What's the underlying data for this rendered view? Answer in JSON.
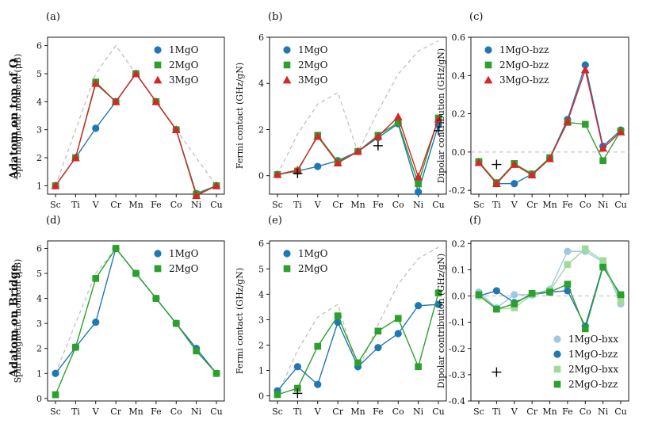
{
  "figure": {
    "row_labels": [
      "Adatom on top of O",
      "Adatom on Bridge"
    ]
  },
  "chart_data": [
    {
      "panel": "(a)",
      "type": "line",
      "ylabel": "Spin magnetic moment (μB)",
      "categories": [
        "Sc",
        "Ti",
        "V",
        "Cr",
        "Mn",
        "Fe",
        "Co",
        "Ni",
        "Cu"
      ],
      "ylim": [
        0.7,
        6.3
      ],
      "yticks": [
        1,
        2,
        3,
        4,
        5,
        6
      ],
      "dashed": [
        1,
        3,
        5,
        6,
        5,
        4,
        3,
        2,
        1
      ],
      "series": [
        {
          "name": "1MgO",
          "values": [
            1,
            2,
            3.05,
            4,
            5,
            4,
            3,
            0.72,
            1
          ],
          "color": "#1f77b4",
          "marker": "circle"
        },
        {
          "name": "2MgO",
          "values": [
            1,
            2,
            4.7,
            4,
            5,
            4,
            3,
            0.7,
            1
          ],
          "color": "#2ca02c",
          "marker": "square"
        },
        {
          "name": "3MgO",
          "values": [
            1,
            2,
            4.65,
            4,
            5,
            4,
            3,
            0.65,
            1
          ],
          "color": "#d62728",
          "marker": "triangle"
        }
      ],
      "legend_loc": "upper-right"
    },
    {
      "panel": "(b)",
      "type": "line",
      "ylabel": "Fermi contact (GHz/gN)",
      "categories": [
        "Sc",
        "Ti",
        "V",
        "Cr",
        "Mn",
        "Fe",
        "Co",
        "Ni",
        "Cu"
      ],
      "ylim": [
        -0.8,
        6.0
      ],
      "yticks": [
        0,
        2,
        4,
        6
      ],
      "dashed": [
        0.05,
        1.8,
        3.1,
        3.6,
        1.0,
        2.8,
        4.4,
        5.4,
        5.85
      ],
      "series": [
        {
          "name": "1MgO",
          "values": [
            0.05,
            0.2,
            0.4,
            0.65,
            1.05,
            1.65,
            2.25,
            -0.7,
            2.2
          ],
          "color": "#1f77b4",
          "marker": "circle"
        },
        {
          "name": "2MgO",
          "values": [
            0.05,
            0.2,
            1.75,
            0.6,
            1.05,
            1.75,
            2.3,
            -0.35,
            2.5
          ],
          "color": "#2ca02c",
          "marker": "square"
        },
        {
          "name": "3MgO",
          "values": [
            0.05,
            0.25,
            1.7,
            0.55,
            1.05,
            1.7,
            2.55,
            -0.05,
            2.45
          ],
          "color": "#d62728",
          "marker": "triangle"
        }
      ],
      "crosses": [
        [
          1,
          0.1
        ],
        [
          5,
          1.3
        ],
        [
          8,
          1.95
        ]
      ],
      "legend_loc": "upper-left"
    },
    {
      "panel": "(c)",
      "type": "line",
      "ylabel": "Dipolar contribution (GHz/gN)",
      "categories": [
        "Sc",
        "Ti",
        "V",
        "Cr",
        "Mn",
        "Fe",
        "Co",
        "Ni",
        "Cu"
      ],
      "ylim": [
        -0.22,
        0.6
      ],
      "yticks": [
        -0.2,
        0.0,
        0.2,
        0.4,
        0.6
      ],
      "zero_line": true,
      "series": [
        {
          "name": "1MgO-bzz",
          "values": [
            -0.05,
            -0.165,
            -0.165,
            -0.115,
            -0.03,
            0.17,
            0.455,
            0.03,
            0.115
          ],
          "color": "#1f77b4",
          "marker": "circle"
        },
        {
          "name": "2MgO-bzz",
          "values": [
            -0.05,
            -0.16,
            -0.06,
            -0.115,
            -0.03,
            0.155,
            0.145,
            -0.045,
            0.11
          ],
          "color": "#2ca02c",
          "marker": "square"
        },
        {
          "name": "3MgO-bzz",
          "values": [
            -0.055,
            -0.165,
            -0.065,
            -0.12,
            -0.035,
            0.16,
            0.43,
            0.02,
            0.105
          ],
          "color": "#d62728",
          "marker": "triangle"
        }
      ],
      "crosses": [
        [
          1,
          -0.065
        ]
      ],
      "legend_loc": "upper-left"
    },
    {
      "panel": "(d)",
      "type": "line",
      "ylabel": "Spin magnetic moment (μB)",
      "categories": [
        "Sc",
        "Ti",
        "V",
        "Cr",
        "Mn",
        "Fe",
        "Co",
        "Ni",
        "Cu"
      ],
      "ylim": [
        -0.1,
        6.3
      ],
      "yticks": [
        0,
        1,
        2,
        3,
        4,
        5,
        6
      ],
      "dashed": [
        1,
        3,
        5,
        6,
        5,
        4,
        3,
        2,
        1
      ],
      "series": [
        {
          "name": "1MgO",
          "values": [
            1,
            2.05,
            3.05,
            6,
            5,
            4,
            3,
            2,
            1
          ],
          "color": "#1f77b4",
          "marker": "circle"
        },
        {
          "name": "2MgO",
          "values": [
            0.15,
            2.05,
            4.8,
            6,
            5,
            4,
            3,
            1.9,
            1
          ],
          "color": "#2ca02c",
          "marker": "square"
        }
      ],
      "legend_loc": "upper-right"
    },
    {
      "panel": "(e)",
      "type": "line",
      "ylabel": "Fermi contact (GHz/gN)",
      "categories": [
        "Sc",
        "Ti",
        "V",
        "Cr",
        "Mn",
        "Fe",
        "Co",
        "Ni",
        "Cu"
      ],
      "ylim": [
        -0.2,
        6.1
      ],
      "yticks": [
        0,
        1,
        2,
        3,
        4,
        5,
        6
      ],
      "dashed": [
        0.05,
        1.8,
        3.1,
        3.6,
        1.0,
        2.8,
        4.4,
        5.4,
        5.85
      ],
      "series": [
        {
          "name": "1MgO",
          "values": [
            0.2,
            1.15,
            0.45,
            2.9,
            1.15,
            1.9,
            2.45,
            3.55,
            3.6
          ],
          "color": "#1f77b4",
          "marker": "circle"
        },
        {
          "name": "2MgO",
          "values": [
            0.05,
            0.3,
            1.95,
            3.15,
            1.3,
            2.55,
            3.05,
            1.15,
            4.05
          ],
          "color": "#2ca02c",
          "marker": "square"
        }
      ],
      "crosses": [
        [
          1,
          0.1
        ]
      ],
      "legend_loc": "upper-left"
    },
    {
      "panel": "(f)",
      "type": "line",
      "ylabel": "Dipolar contribution (GHz/gN)",
      "categories": [
        "Sc",
        "Ti",
        "V",
        "Cr",
        "Mn",
        "Fe",
        "Co",
        "Ni",
        "Cu"
      ],
      "ylim": [
        -0.4,
        0.21
      ],
      "yticks": [
        -0.4,
        -0.3,
        -0.2,
        -0.1,
        0.0,
        0.1,
        0.2
      ],
      "zero_line": true,
      "series": [
        {
          "name": "1MgO-bxx",
          "values": [
            0.015,
            -0.045,
            0.005,
            0.005,
            0.025,
            0.17,
            0.17,
            0.13,
            -0.03
          ],
          "color": "#9ecae1",
          "marker": "circle"
        },
        {
          "name": "1MgO-bzz",
          "values": [
            0.0,
            0.02,
            -0.025,
            0.005,
            0.015,
            0.02,
            -0.115,
            0.115,
            0.0
          ],
          "color": "#1f77b4",
          "marker": "circle"
        },
        {
          "name": "2MgO-bxx",
          "values": [
            0.0,
            -0.05,
            -0.045,
            0.005,
            0.02,
            0.12,
            0.18,
            0.135,
            -0.02
          ],
          "color": "#a1d99b",
          "marker": "square"
        },
        {
          "name": "2MgO-bzz",
          "values": [
            0.005,
            -0.05,
            -0.03,
            0.01,
            0.015,
            0.045,
            -0.125,
            0.11,
            0.005
          ],
          "color": "#2ca02c",
          "marker": "square"
        }
      ],
      "crosses": [
        [
          1,
          -0.29
        ]
      ],
      "legend_loc": "lower-right"
    }
  ]
}
